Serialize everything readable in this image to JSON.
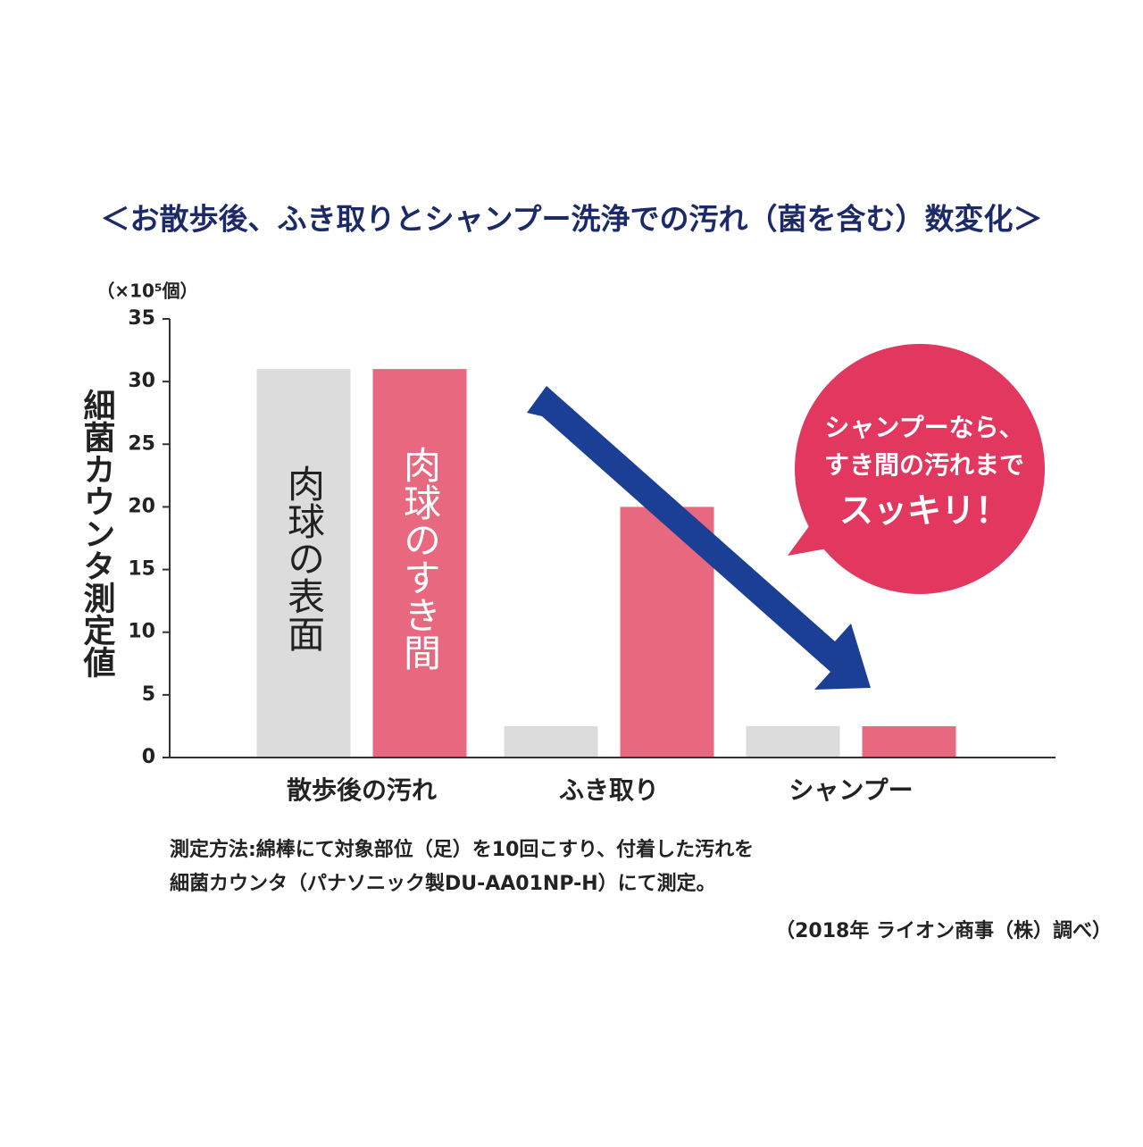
{
  "chart_data": {
    "type": "bar",
    "title": "＜お散歩後、ふき取りとシャンプー洗浄での汚れ（菌を含む）数変化＞",
    "y_label": "細菌カウンタ測定値",
    "y_unit": "（×10⁵個）",
    "categories": [
      "散歩後の汚れ",
      "ふき取り",
      "シャンプー"
    ],
    "series": [
      {
        "name": "肉球の表面",
        "color": "#dcdcdc",
        "values": [
          31,
          2.5,
          2.5
        ]
      },
      {
        "name": "肉球のすき間",
        "color": "#e8687f",
        "values": [
          31,
          20,
          2.5
        ]
      }
    ],
    "ylim": [
      0,
      35
    ],
    "yticks": [
      0,
      5,
      10,
      15,
      20,
      25,
      30,
      35
    ],
    "annotation": [
      "シャンプーなら、",
      "すき間の汚れまで",
      "スッキリ！"
    ],
    "notes": [
      "測定方法:綿棒にて対象部位（足）を10回こすり、付着した汚れを",
      "細菌カウンタ（パナソニック製DU-AA01NP-H）にて測定。"
    ],
    "source": "（2018年 ライオン商事（株）調べ）"
  }
}
